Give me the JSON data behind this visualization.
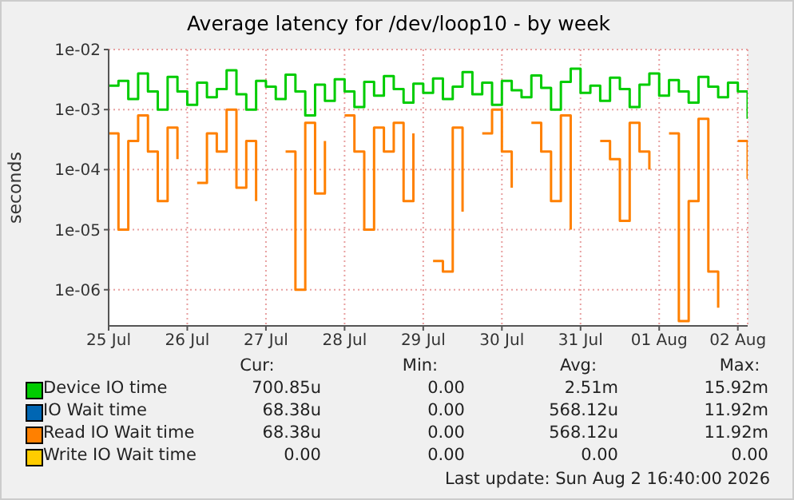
{
  "chart_data": {
    "type": "step",
    "title": "Average latency for /dev/loop10 - by week",
    "ylabel": "seconds",
    "log": "y",
    "grid": true,
    "legend": "bottom",
    "ylim": [
      2.5e-07,
      0.01
    ],
    "yticks": [
      {
        "value": 1e-06,
        "label": "1e-06"
      },
      {
        "value": 1e-05,
        "label": "1e-05"
      },
      {
        "value": 0.0001,
        "label": "1e-04"
      },
      {
        "value": 0.001,
        "label": "1e-03"
      },
      {
        "value": 0.01,
        "label": "1e-02"
      }
    ],
    "xlim": [
      "2026-07-25T00:00",
      "2026-08-02T03:00"
    ],
    "xticks": [
      {
        "value": "2026-07-25",
        "label": "25 Jul"
      },
      {
        "value": "2026-07-26",
        "label": "26 Jul"
      },
      {
        "value": "2026-07-27",
        "label": "27 Jul"
      },
      {
        "value": "2026-07-28",
        "label": "28 Jul"
      },
      {
        "value": "2026-07-29",
        "label": "29 Jul"
      },
      {
        "value": "2026-07-30",
        "label": "30 Jul"
      },
      {
        "value": "2026-07-31",
        "label": "31 Jul"
      },
      {
        "value": "2026-08-01",
        "label": "01 Aug"
      },
      {
        "value": "2026-08-02",
        "label": "02 Aug"
      }
    ],
    "x": [
      "2026-07-25T00:00",
      "2026-07-25T03:00",
      "2026-07-25T06:00",
      "2026-07-25T09:00",
      "2026-07-25T12:00",
      "2026-07-25T15:00",
      "2026-07-25T18:00",
      "2026-07-25T21:00",
      "2026-07-26T00:00",
      "2026-07-26T03:00",
      "2026-07-26T06:00",
      "2026-07-26T09:00",
      "2026-07-26T12:00",
      "2026-07-26T15:00",
      "2026-07-26T18:00",
      "2026-07-26T21:00",
      "2026-07-27T00:00",
      "2026-07-27T03:00",
      "2026-07-27T06:00",
      "2026-07-27T09:00",
      "2026-07-27T12:00",
      "2026-07-27T15:00",
      "2026-07-27T18:00",
      "2026-07-27T21:00",
      "2026-07-28T00:00",
      "2026-07-28T03:00",
      "2026-07-28T06:00",
      "2026-07-28T09:00",
      "2026-07-28T12:00",
      "2026-07-28T15:00",
      "2026-07-28T18:00",
      "2026-07-28T21:00",
      "2026-07-29T00:00",
      "2026-07-29T03:00",
      "2026-07-29T06:00",
      "2026-07-29T09:00",
      "2026-07-29T12:00",
      "2026-07-29T15:00",
      "2026-07-29T18:00",
      "2026-07-29T21:00",
      "2026-07-30T00:00",
      "2026-07-30T03:00",
      "2026-07-30T06:00",
      "2026-07-30T09:00",
      "2026-07-30T12:00",
      "2026-07-30T15:00",
      "2026-07-30T18:00",
      "2026-07-30T21:00",
      "2026-07-31T00:00",
      "2026-07-31T03:00",
      "2026-07-31T06:00",
      "2026-07-31T09:00",
      "2026-07-31T12:00",
      "2026-07-31T15:00",
      "2026-07-31T18:00",
      "2026-07-31T21:00",
      "2026-08-01T00:00",
      "2026-08-01T03:00",
      "2026-08-01T06:00",
      "2026-08-01T09:00",
      "2026-08-01T12:00",
      "2026-08-01T15:00",
      "2026-08-01T18:00",
      "2026-08-01T21:00",
      "2026-08-02T00:00",
      "2026-08-02T03:00"
    ],
    "series": [
      {
        "name": "Device IO time",
        "color": "#00cc00",
        "values": [
          0.0025,
          0.003,
          0.0015,
          0.004,
          0.002,
          0.001,
          0.0035,
          0.002,
          0.0012,
          0.0028,
          0.0016,
          0.0022,
          0.0045,
          0.0018,
          0.001,
          0.003,
          0.0024,
          0.0015,
          0.0038,
          0.002,
          0.0008,
          0.0026,
          0.0014,
          0.0032,
          0.002,
          0.0011,
          0.0029,
          0.0017,
          0.0036,
          0.0022,
          0.0013,
          0.0027,
          0.0019,
          0.0033,
          0.0015,
          0.0024,
          0.0042,
          0.0018,
          0.0028,
          0.0012,
          0.003,
          0.0021,
          0.0016,
          0.0037,
          0.0023,
          0.001,
          0.0029,
          0.0048,
          0.0019,
          0.0025,
          0.0014,
          0.0034,
          0.0022,
          0.0011,
          0.0026,
          0.004,
          0.0017,
          0.0031,
          0.002,
          0.0013,
          0.0035,
          0.0024,
          0.0016,
          0.0028,
          0.002,
          0.0007
        ]
      },
      {
        "name": "IO Wait time",
        "color": "#0066b3",
        "values": [
          null,
          null,
          null,
          null,
          null,
          null,
          null,
          null,
          null,
          null,
          null,
          null,
          null,
          null,
          null,
          null,
          null,
          null,
          null,
          null,
          null,
          null,
          null,
          null,
          null,
          null,
          null,
          null,
          null,
          null,
          null,
          null,
          null,
          null,
          null,
          null,
          null,
          null,
          null,
          null,
          null,
          null,
          null,
          null,
          null,
          null,
          null,
          null,
          null,
          null,
          null,
          null,
          null,
          null,
          null,
          null,
          null,
          null,
          null,
          null,
          null,
          null,
          null,
          null,
          null,
          null
        ]
      },
      {
        "name": "Read IO Wait time",
        "color": "#ff8000",
        "values": [
          0.0004,
          1e-05,
          0.0003,
          0.0008,
          0.0002,
          3e-05,
          0.0005,
          0.00015,
          null,
          6e-05,
          0.0004,
          0.0002,
          0.001,
          5e-05,
          0.0003,
          3e-05,
          null,
          null,
          0.0002,
          1e-06,
          0.0006,
          4e-05,
          0.0003,
          null,
          0.0008,
          0.0002,
          1e-05,
          0.0005,
          0.0002,
          0.0006,
          3e-05,
          0.0004,
          null,
          3e-06,
          2e-06,
          0.0005,
          2e-05,
          null,
          0.0004,
          0.001,
          0.0002,
          5e-05,
          null,
          0.0006,
          0.0002,
          3e-05,
          0.0008,
          1e-05,
          null,
          null,
          0.0003,
          0.00015,
          1.4e-05,
          0.0006,
          0.0002,
          0.0001,
          null,
          0.0004,
          3e-07,
          3e-05,
          0.0007,
          2e-06,
          5e-07,
          null,
          0.0003,
          7e-05
        ]
      },
      {
        "name": "Write IO Wait time",
        "color": "#ffcc00",
        "values": [
          null,
          null,
          null,
          null,
          null,
          null,
          null,
          null,
          null,
          null,
          null,
          null,
          null,
          null,
          null,
          null,
          null,
          null,
          null,
          null,
          null,
          null,
          null,
          null,
          null,
          null,
          null,
          null,
          null,
          null,
          null,
          null,
          null,
          null,
          null,
          null,
          null,
          null,
          null,
          null,
          null,
          null,
          null,
          null,
          null,
          null,
          null,
          null,
          null,
          null,
          null,
          null,
          null,
          null,
          null,
          null,
          null,
          null,
          null,
          null,
          null,
          null,
          null,
          null,
          null,
          null
        ]
      }
    ],
    "annotations": [
      "Cur:",
      "Min:",
      "Avg:",
      "Max:",
      "700.85u",
      "0.00",
      "2.51m",
      "15.92m",
      "68.38u",
      "0.00",
      "568.12u",
      "11.92m",
      "68.38u",
      "0.00",
      "568.12u",
      "11.92m",
      "0.00",
      "0.00",
      "0.00",
      "0.00",
      "Last update: Sun Aug  2 16:40:00 2026"
    ]
  }
}
